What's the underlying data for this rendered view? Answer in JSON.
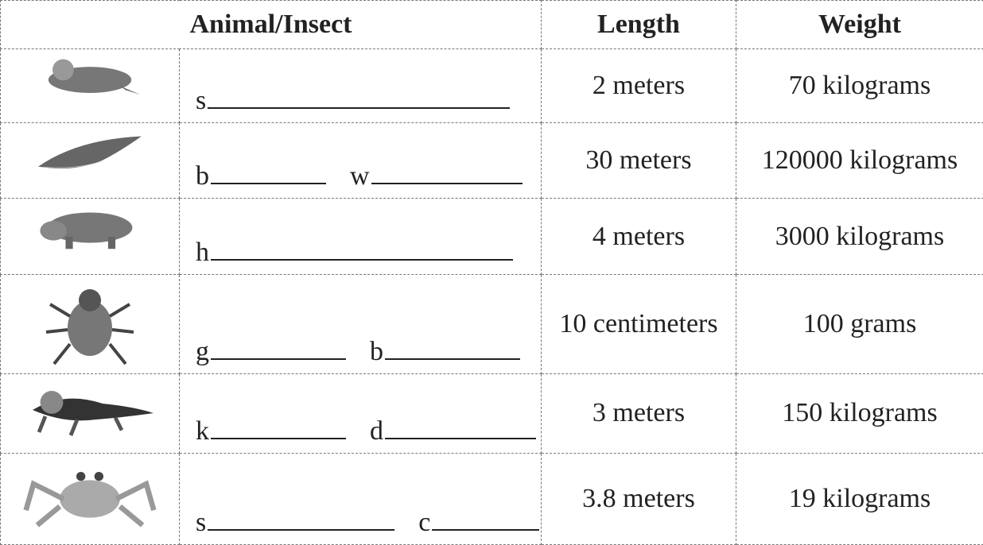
{
  "table": {
    "header": [
      "Animal/Insect",
      "Length",
      "Weight"
    ],
    "rows": [
      {
        "blanks": [
          "s"
        ],
        "length": "2 meters",
        "weight": "70 kilograms"
      },
      {
        "blanks": [
          "b",
          "w"
        ],
        "length": "30 meters",
        "weight": "120000 kilograms"
      },
      {
        "blanks": [
          "h"
        ],
        "length": "4 meters",
        "weight": "3000 kilograms"
      },
      {
        "blanks": [
          "g",
          "b"
        ],
        "length": "10 centimeters",
        "weight": "100 grams"
      },
      {
        "blanks": [
          "k",
          "d"
        ],
        "length": "3 meters",
        "weight": "150 kilograms"
      },
      {
        "blanks": [
          "s",
          "c"
        ],
        "length": "3.8 meters",
        "weight": "19 kilograms"
      }
    ]
  }
}
